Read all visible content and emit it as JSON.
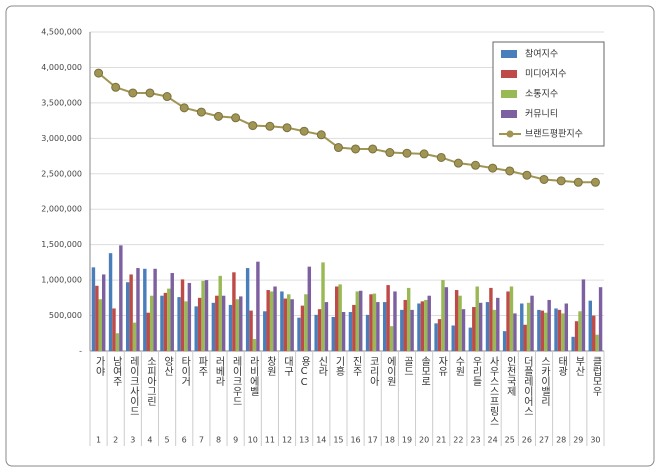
{
  "chart_data": {
    "type": "bar_line",
    "categories": [
      "가야",
      "남여주",
      "레이크사이드",
      "소피아그린",
      "양산",
      "타이거",
      "파주",
      "러베라",
      "레이크우드",
      "라비에벨",
      "창원",
      "대구",
      "용CC",
      "신라",
      "기흥",
      "진주",
      "코리아",
      "에이원",
      "골드",
      "솔모로",
      "자유",
      "수원",
      "우리들",
      "사우스스프링스",
      "인천국제",
      "더플레이어스",
      "스카이밸리",
      "태광",
      "부산",
      "클럽모우"
    ],
    "ranks": [
      1,
      2,
      3,
      4,
      5,
      6,
      7,
      8,
      9,
      10,
      11,
      12,
      13,
      14,
      15,
      16,
      17,
      18,
      19,
      20,
      21,
      22,
      23,
      24,
      25,
      26,
      27,
      28,
      29,
      30
    ],
    "ylim": [
      0,
      4500000
    ],
    "yticks": [
      {
        "value": 0,
        "label": "-"
      },
      {
        "value": 500000,
        "label": "500,000"
      },
      {
        "value": 1000000,
        "label": "1,000,000"
      },
      {
        "value": 1500000,
        "label": "1,500,000"
      },
      {
        "value": 2000000,
        "label": "2,000,000"
      },
      {
        "value": 2500000,
        "label": "2,500,000"
      },
      {
        "value": 3000000,
        "label": "3,000,000"
      },
      {
        "value": 3500000,
        "label": "3,500,000"
      },
      {
        "value": 4000000,
        "label": "4,000,000"
      },
      {
        "value": 4500000,
        "label": "4,500,000"
      }
    ],
    "grid": true,
    "series": [
      {
        "name": "참여지수",
        "type": "bar",
        "color": "#4a7ebb",
        "values": [
          1180000,
          1380000,
          970000,
          1160000,
          780000,
          760000,
          630000,
          680000,
          650000,
          1170000,
          560000,
          840000,
          470000,
          510000,
          480000,
          550000,
          510000,
          690000,
          580000,
          670000,
          390000,
          360000,
          330000,
          690000,
          280000,
          670000,
          580000,
          600000,
          200000,
          710000
        ]
      },
      {
        "name": "미디어지수",
        "type": "bar",
        "color": "#be4b48",
        "values": [
          920000,
          600000,
          1080000,
          540000,
          820000,
          1010000,
          750000,
          780000,
          1110000,
          570000,
          860000,
          740000,
          640000,
          590000,
          910000,
          650000,
          800000,
          930000,
          720000,
          700000,
          450000,
          860000,
          620000,
          890000,
          840000,
          370000,
          570000,
          580000,
          420000,
          500000
        ]
      },
      {
        "name": "소통지수",
        "type": "bar",
        "color": "#98b954",
        "values": [
          730000,
          250000,
          400000,
          780000,
          880000,
          700000,
          990000,
          1060000,
          730000,
          170000,
          840000,
          800000,
          800000,
          1250000,
          940000,
          840000,
          810000,
          350000,
          890000,
          720000,
          1000000,
          780000,
          910000,
          580000,
          910000,
          680000,
          540000,
          530000,
          560000,
          230000
        ]
      },
      {
        "name": "커뮤니티",
        "type": "bar",
        "color": "#7d60a0",
        "values": [
          1080000,
          1490000,
          1170000,
          1160000,
          1100000,
          960000,
          1000000,
          780000,
          770000,
          1260000,
          910000,
          730000,
          1190000,
          690000,
          550000,
          850000,
          690000,
          840000,
          580000,
          780000,
          900000,
          590000,
          680000,
          750000,
          530000,
          780000,
          720000,
          670000,
          1010000,
          900000
        ]
      },
      {
        "name": "브랜드평판지수",
        "type": "line",
        "color": "#a09552",
        "values": [
          3920000,
          3720000,
          3640000,
          3640000,
          3590000,
          3430000,
          3370000,
          3310000,
          3290000,
          3180000,
          3170000,
          3150000,
          3100000,
          3050000,
          2870000,
          2850000,
          2850000,
          2800000,
          2790000,
          2780000,
          2730000,
          2650000,
          2620000,
          2580000,
          2540000,
          2480000,
          2420000,
          2400000,
          2380000,
          2380000
        ]
      }
    ]
  }
}
